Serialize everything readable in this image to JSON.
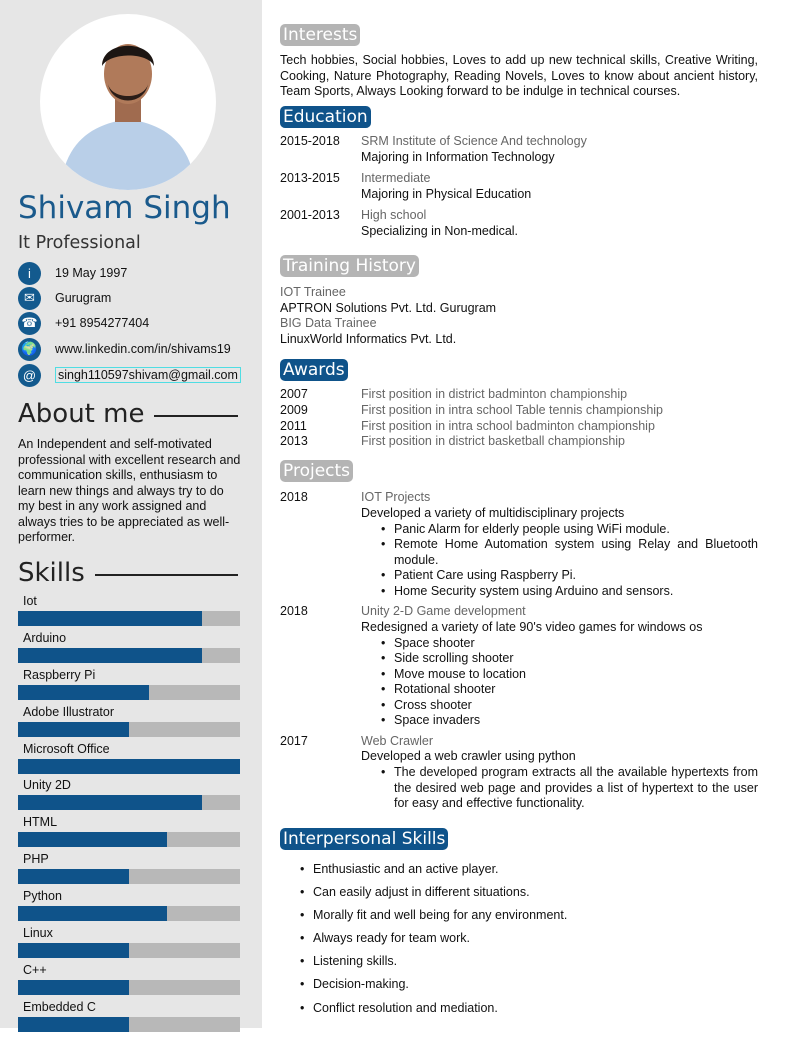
{
  "profile": {
    "name": "Shivam Singh",
    "title": "It Professional"
  },
  "contacts": [
    {
      "icon": "info-icon",
      "glyph": "i",
      "text": "19 May 1997"
    },
    {
      "icon": "envelope-icon",
      "glyph": "✉",
      "text": "Gurugram"
    },
    {
      "icon": "phone-icon",
      "glyph": "☎",
      "text": "+91 8954277404"
    },
    {
      "icon": "globe-icon",
      "glyph": "🌍",
      "text": "www.linkedin.com/in/shivams19"
    },
    {
      "icon": "at-icon",
      "glyph": "@",
      "text": "singh110597shivam@gmail.com"
    }
  ],
  "about": {
    "heading": "About me",
    "text": "An Independent and self-motivated professional with excellent research and communication skills, enthusiasm to learn new things and always try to do my best in any work assigned and always tries to be appreciated as well-performer."
  },
  "skills": {
    "heading": "Skills",
    "items": [
      {
        "label": "Iot",
        "level": 0.83
      },
      {
        "label": "Arduino",
        "level": 0.83
      },
      {
        "label": "Raspberry Pi",
        "level": 0.59
      },
      {
        "label": "Adobe Illustrator",
        "level": 0.5
      },
      {
        "label": "Microsoft Office",
        "level": 1.0
      },
      {
        "label": "Unity 2D",
        "level": 0.83
      },
      {
        "label": "HTML",
        "level": 0.67
      },
      {
        "label": "PHP",
        "level": 0.5
      },
      {
        "label": "Python",
        "level": 0.67
      },
      {
        "label": "Linux",
        "level": 0.5
      },
      {
        "label": "C++",
        "level": 0.5
      },
      {
        "label": "Embedded C",
        "level": 0.5
      }
    ]
  },
  "interests": {
    "heading": "Interests",
    "text": "Tech hobbies, Social hobbies, Loves to add up new technical skills, Creative Writing, Cooking, Nature Photography, Reading Novels, Loves to know about ancient history, Team Sports, Always Looking forward to be indulge in technical courses."
  },
  "education": {
    "heading": "Education",
    "items": [
      {
        "years": "2015-2018",
        "school": "SRM Institute of Science And technology",
        "detail": "Majoring in Information Technology"
      },
      {
        "years": "2013-2015",
        "school": "Intermediate",
        "detail": "Majoring in Physical Education"
      },
      {
        "years": "2001-2013",
        "school": "High school",
        "detail": "Specializing in Non-medical."
      }
    ]
  },
  "training": {
    "heading": "Training History",
    "items": [
      {
        "role": "IOT Trainee",
        "org": "APTRON Solutions Pvt. Ltd. Gurugram"
      },
      {
        "role": "BIG Data Trainee",
        "org": "LinuxWorld Informatics Pvt. Ltd."
      }
    ]
  },
  "awards": {
    "heading": "Awards",
    "items": [
      {
        "year": "2007",
        "text": "First position in district badminton championship"
      },
      {
        "year": "2009",
        "text": "First position in intra school Table tennis championship"
      },
      {
        "year": "2011",
        "text": "First position in intra school badminton championship"
      },
      {
        "year": "2013",
        "text": "First position in district basketball championship"
      }
    ]
  },
  "projects": {
    "heading": "Projects",
    "items": [
      {
        "year": "2018",
        "title": "IOT Projects",
        "desc": "Developed a variety of multidisciplinary projects",
        "bullets": [
          "Panic Alarm for elderly people using WiFi module.",
          "Remote Home Automation system using Relay and Bluetooth module.",
          "Patient Care using Raspberry Pi.",
          "Home Security system using Arduino and sensors."
        ]
      },
      {
        "year": "2018",
        "title": "Unity 2-D Game development",
        "desc": "Redesigned a variety of late 90's video games for windows os",
        "bullets": [
          "Space shooter",
          "Side scrolling shooter",
          "Move mouse to location",
          "Rotational shooter",
          "Cross shooter",
          "Space invaders"
        ]
      },
      {
        "year": "2017",
        "title": "Web Crawler",
        "desc": "Developed a web crawler using python",
        "bullets": [
          "The developed program extracts all the available hypertexts from the desired web page and provides a list of hypertext to the user for easy and effective functionality."
        ]
      }
    ]
  },
  "interpersonal": {
    "heading": "Interpersonal Skills",
    "items": [
      "Enthusiastic and an active player.",
      "Can easily adjust in different situations.",
      "Morally fit and well being for any environment.",
      "Always ready for team work.",
      "Listening skills.",
      "Decision-making.",
      "Conflict resolution and mediation."
    ]
  },
  "colors": {
    "accent": "#0f538a",
    "name": "#1a5a8c",
    "sidebar": "#e6e6e6",
    "pill_gray": "#b4b4b4",
    "bar_track": "#b8b8b8"
  }
}
